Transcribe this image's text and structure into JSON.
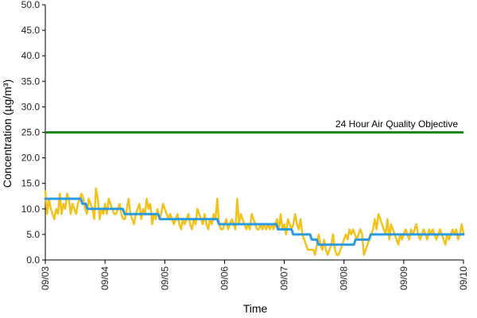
{
  "chart_data": {
    "type": "line",
    "title": "",
    "xlabel": "Time",
    "ylabel": "Concentration (µg/m³)",
    "ylim": [
      0,
      50
    ],
    "y_ticks": [
      "0.0",
      "5.0",
      "10.0",
      "15.0",
      "20.0",
      "25.0",
      "30.0",
      "35.0",
      "40.0",
      "45.0",
      "50.0"
    ],
    "x_ticks": [
      "09/03",
      "09/04",
      "09/05",
      "09/06",
      "09/07",
      "09/08",
      "09/09",
      "09/10"
    ],
    "grid": false,
    "legend": "none",
    "annotation": "24 Hour Air Quality Objective",
    "objective": {
      "value": 25,
      "color": "#1a8a1a"
    },
    "series": [
      {
        "color": "#f2c21b",
        "values": [
          13.5,
          9,
          12,
          10,
          9,
          8,
          10,
          9,
          13,
          9,
          11,
          10,
          13,
          12,
          9,
          11,
          10,
          9,
          11,
          12,
          13,
          12,
          10,
          9,
          12,
          11,
          10,
          8,
          14,
          12,
          8,
          10,
          9,
          11,
          9,
          12,
          11,
          10,
          9,
          9,
          10,
          11,
          9,
          8,
          8,
          10,
          12,
          9,
          8,
          7,
          9,
          10,
          11,
          8,
          10,
          9,
          12,
          10,
          11,
          7,
          9,
          8,
          10,
          8,
          9,
          11,
          10,
          9,
          8,
          9,
          8,
          7,
          8,
          9,
          7,
          6,
          8,
          7,
          8,
          9,
          7,
          6,
          8,
          7,
          10,
          9,
          8,
          7,
          9,
          7,
          6,
          8,
          7,
          9,
          8,
          12,
          7,
          6,
          6,
          7,
          8,
          6,
          7,
          8,
          7,
          6,
          12,
          7,
          9,
          8,
          7,
          6,
          7,
          6,
          9,
          8,
          7,
          6,
          6,
          7,
          6,
          7,
          6,
          7,
          6,
          7,
          6,
          7,
          8,
          6,
          9,
          6,
          7,
          5,
          8,
          7,
          6,
          7,
          9,
          7,
          6,
          8,
          5,
          4,
          3,
          2,
          2,
          2,
          2,
          1,
          3,
          5,
          3,
          2,
          4,
          2,
          1,
          2,
          3,
          5,
          2,
          1,
          1,
          2,
          3,
          4,
          5,
          4,
          6,
          5,
          6,
          5,
          4,
          5,
          6,
          5,
          1,
          2,
          3,
          4,
          5,
          6,
          8,
          6,
          9,
          8,
          7,
          6,
          5,
          8,
          4,
          7,
          6,
          5,
          4,
          3,
          5,
          4,
          5,
          6,
          5,
          4,
          6,
          5,
          6,
          7,
          5,
          4,
          5,
          6,
          5,
          4,
          6,
          5,
          6,
          5,
          4,
          5,
          6,
          5,
          4,
          3,
          5,
          4,
          5,
          6,
          5,
          6,
          4,
          5,
          7,
          5
        ],
        "stroke_width": 2.5
      },
      {
        "color": "#2b9ae0",
        "values": [
          12,
          12,
          12,
          12,
          12,
          12,
          12,
          12,
          12,
          12,
          12,
          12,
          12,
          12,
          12,
          12,
          12,
          12,
          12,
          12,
          12,
          12,
          11,
          11,
          11,
          10,
          10,
          10,
          10,
          10,
          10,
          10,
          10,
          10,
          10,
          10,
          10,
          10,
          10,
          10,
          10,
          10,
          10,
          10,
          10,
          10,
          10,
          9,
          9,
          9,
          9,
          9,
          9,
          9,
          9,
          9,
          9,
          9,
          9,
          9,
          9,
          9,
          9,
          9,
          9,
          9,
          9,
          9,
          8,
          8,
          8,
          8,
          8,
          8,
          8,
          8,
          8,
          8,
          8,
          8,
          8,
          8,
          8,
          8,
          8,
          8,
          8,
          8,
          8,
          8,
          8,
          8,
          8,
          8,
          8,
          8,
          8,
          8,
          8,
          8,
          8,
          8,
          8,
          7,
          7,
          7,
          7,
          7,
          7,
          7,
          7,
          7,
          7,
          7,
          7,
          7,
          7,
          7,
          7,
          7,
          7,
          7,
          7,
          7,
          7,
          7,
          7,
          7,
          7,
          7,
          7,
          7,
          7,
          7,
          7,
          7,
          7,
          7,
          6,
          6,
          6,
          6,
          6,
          6,
          6,
          6,
          6,
          5,
          5,
          5,
          5,
          5,
          5,
          5,
          5,
          5,
          5,
          5,
          4,
          4,
          4,
          4,
          3,
          3,
          3,
          3,
          3,
          3,
          3,
          3,
          3,
          3,
          3,
          3,
          3,
          3,
          3,
          3,
          3,
          3,
          3,
          3,
          3,
          3,
          4,
          4,
          4,
          4,
          4,
          4,
          4,
          4,
          4,
          5,
          5,
          5,
          5,
          5,
          5,
          5,
          5,
          5,
          5,
          5,
          5,
          5,
          5,
          5,
          5,
          5,
          5,
          5,
          5,
          5,
          5,
          5,
          5,
          5,
          5,
          5,
          5,
          5,
          5,
          5,
          5,
          5,
          5,
          5,
          5,
          5,
          5,
          5,
          5,
          5,
          5,
          5,
          5,
          5,
          5,
          5,
          5,
          5,
          5,
          5,
          5,
          5,
          5,
          5,
          5
        ],
        "stroke_width": 3
      }
    ]
  }
}
